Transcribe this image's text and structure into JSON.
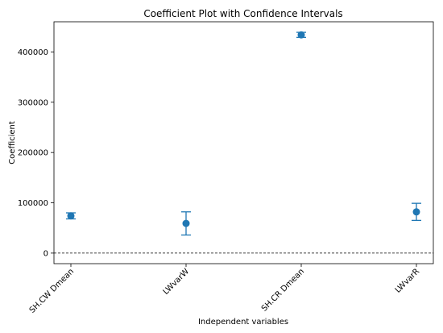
{
  "chart_data": {
    "type": "scatter",
    "title": "Coefficient Plot with Confidence Intervals",
    "xlabel": "Independent variables",
    "ylabel": "Coefficient",
    "categories": [
      "SH.CW Dmean",
      "LWvarW",
      "SH.CR Dmean",
      "LWvarR"
    ],
    "series": [
      {
        "values": [
          74000,
          59000,
          434000,
          82000
        ],
        "lower": [
          68000,
          36000,
          429000,
          65000
        ],
        "upper": [
          80000,
          82000,
          439000,
          99000
        ]
      }
    ],
    "ylim": [
      -21000,
      460000
    ],
    "yticks": [
      0,
      100000,
      200000,
      300000,
      400000
    ],
    "ytick_labels": [
      "0",
      "100000",
      "200000",
      "300000",
      "400000"
    ],
    "reference_line": {
      "y": 0,
      "style": "dashed",
      "color": "#000000"
    },
    "grid": false,
    "marker_color": "#1f77b4"
  }
}
